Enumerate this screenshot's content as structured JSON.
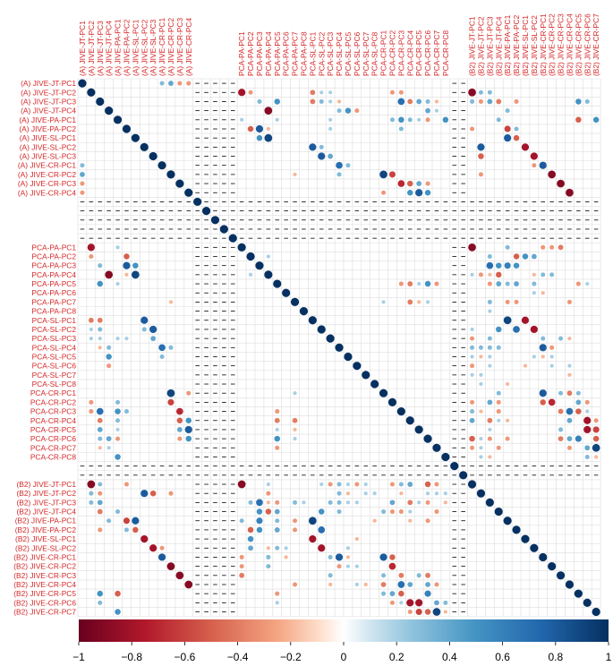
{
  "chart_data": {
    "type": "heatmap",
    "variables": [
      "(A) JIVE-JT-PC1",
      "(A) JIVE-JT-PC2",
      "(A) JIVE-JT-PC3",
      "(A) JIVE-JT-PC4",
      "(A) JIVE-PA-PC1",
      "(A) JIVE-PA-PC2",
      "(A) JIVE-SL-PC1",
      "(A) JIVE-SL-PC2",
      "(A) JIVE-SL-PC3",
      "(A) JIVE-CR-PC1",
      "(A) JIVE-CR-PC2",
      "(A) JIVE-CR-PC3",
      "(A) JIVE-CR-PC4",
      "",
      "",
      "",
      "",
      "",
      "PCA-PA-PC1",
      "PCA-PA-PC2",
      "PCA-PA-PC3",
      "PCA-PA-PC4",
      "PCA-PA-PC5",
      "PCA-PA-PC6",
      "PCA-PA-PC7",
      "PCA-PA-PC8",
      "PCA-SL-PC1",
      "PCA-SL-PC2",
      "PCA-SL-PC3",
      "PCA-SL-PC4",
      "PCA-SL-PC5",
      "PCA-SL-PC6",
      "PCA-SL-PC7",
      "PCA-SL-PC8",
      "PCA-CR-PC1",
      "PCA-CR-PC2",
      "PCA-CR-PC3",
      "PCA-CR-PC4",
      "PCA-CR-PC5",
      "PCA-CR-PC6",
      "PCA-CR-PC7",
      "PCA-CR-PC8",
      "",
      "",
      "(B2) JIVE-JT-PC1",
      "(B2) JIVE-JT-PC2",
      "(B2) JIVE-JT-PC3",
      "(B2) JIVE-JT-PC4",
      "(B2) JIVE-PA-PC1",
      "(B2) JIVE-PA-PC2",
      "(B2) JIVE-SL-PC1",
      "(B2) JIVE-SL-PC2",
      "(B2) JIVE-CR-PC1",
      "(B2) JIVE-CR-PC2",
      "(B2) JIVE-CR-PC3",
      "(B2) JIVE-CR-PC4",
      "(B2) JIVE-CR-PC5",
      "(B2) JIVE-CR-PC6",
      "(B2) JIVE-CR-PC7"
    ],
    "na_indices": [
      13,
      14,
      15,
      16,
      17,
      42,
      43
    ],
    "cells": [
      [
        0,
        9,
        0.3
      ],
      [
        0,
        10,
        0.4
      ],
      [
        0,
        11,
        -0.3
      ],
      [
        0,
        12,
        -0.3
      ],
      [
        1,
        18,
        -0.8
      ],
      [
        1,
        19,
        -0.3
      ],
      [
        1,
        26,
        -0.4
      ],
      [
        1,
        27,
        0.2
      ],
      [
        1,
        28,
        0.2
      ],
      [
        1,
        35,
        -0.3
      ],
      [
        1,
        36,
        -0.3
      ],
      [
        1,
        44,
        -0.9
      ],
      [
        1,
        45,
        0.3
      ],
      [
        1,
        46,
        0.3
      ],
      [
        2,
        20,
        0.3
      ],
      [
        2,
        22,
        0.5
      ],
      [
        2,
        26,
        -0.4
      ],
      [
        2,
        27,
        0.3
      ],
      [
        2,
        28,
        0.2
      ],
      [
        2,
        29,
        -0.2
      ],
      [
        2,
        36,
        0.7
      ],
      [
        2,
        37,
        -0.4
      ],
      [
        2,
        38,
        0.4
      ],
      [
        2,
        39,
        0.3
      ],
      [
        2,
        40,
        -0.2
      ],
      [
        2,
        44,
        0.3
      ],
      [
        2,
        45,
        -0.3
      ],
      [
        2,
        46,
        0.4
      ],
      [
        2,
        47,
        -0.4
      ],
      [
        2,
        49,
        -0.3
      ],
      [
        2,
        56,
        0.5
      ],
      [
        2,
        57,
        0.3
      ],
      [
        3,
        21,
        -0.9
      ],
      [
        3,
        29,
        0.3
      ],
      [
        3,
        30,
        0.5
      ],
      [
        3,
        31,
        -0.3
      ],
      [
        3,
        39,
        0.4
      ],
      [
        3,
        40,
        0.2
      ],
      [
        3,
        48,
        0.3
      ],
      [
        4,
        18,
        0.2
      ],
      [
        4,
        22,
        0.2
      ],
      [
        4,
        28,
        0.2
      ],
      [
        4,
        35,
        0.3
      ],
      [
        4,
        36,
        0.5
      ],
      [
        4,
        37,
        0.3
      ],
      [
        4,
        38,
        0.2
      ],
      [
        4,
        39,
        -0.3
      ],
      [
        4,
        41,
        0.5
      ],
      [
        4,
        47,
        0.3
      ],
      [
        4,
        56,
        -0.5
      ],
      [
        4,
        58,
        0.5
      ],
      [
        5,
        19,
        -0.5
      ],
      [
        5,
        20,
        0.8
      ],
      [
        5,
        21,
        -0.2
      ],
      [
        5,
        28,
        0.2
      ],
      [
        5,
        36,
        0.3
      ],
      [
        5,
        44,
        -0.3
      ],
      [
        5,
        48,
        -0.6
      ],
      [
        5,
        49,
        0.3
      ],
      [
        6,
        20,
        0.5
      ],
      [
        6,
        21,
        0.9
      ],
      [
        6,
        48,
        0.8
      ],
      [
        6,
        49,
        -0.5
      ],
      [
        7,
        26,
        0.8
      ],
      [
        7,
        27,
        0.3
      ],
      [
        7,
        45,
        0.8
      ],
      [
        7,
        50,
        -0.8
      ],
      [
        8,
        27,
        0.8
      ],
      [
        8,
        28,
        0.4
      ],
      [
        8,
        45,
        -0.5
      ],
      [
        8,
        51,
        -0.8
      ],
      [
        9,
        29,
        0.7
      ],
      [
        9,
        30,
        0.3
      ],
      [
        9,
        51,
        -0.3
      ],
      [
        9,
        52,
        0.8
      ],
      [
        10,
        24,
        -0.2
      ],
      [
        10,
        29,
        0.3
      ],
      [
        10,
        34,
        0.9
      ],
      [
        10,
        35,
        -0.6
      ],
      [
        10,
        45,
        -0.3
      ],
      [
        10,
        53,
        -0.9
      ],
      [
        11,
        36,
        -0.7
      ],
      [
        11,
        37,
        -0.5
      ],
      [
        11,
        38,
        0.4
      ],
      [
        11,
        39,
        -0.3
      ],
      [
        11,
        54,
        -0.9
      ],
      [
        12,
        34,
        -0.3
      ],
      [
        12,
        37,
        0.5
      ],
      [
        12,
        38,
        0.8
      ],
      [
        12,
        39,
        0.5
      ],
      [
        12,
        55,
        -0.9
      ],
      [
        18,
        44,
        -0.9
      ],
      [
        18,
        48,
        0.3
      ],
      [
        18,
        52,
        -0.3
      ],
      [
        18,
        53,
        -0.3
      ],
      [
        18,
        54,
        -0.4
      ],
      [
        19,
        21,
        0.2
      ],
      [
        19,
        46,
        0.3
      ],
      [
        19,
        49,
        -0.5
      ],
      [
        19,
        50,
        0.5
      ],
      [
        19,
        51,
        0.4
      ],
      [
        20,
        46,
        0.7
      ],
      [
        20,
        47,
        0.5
      ],
      [
        20,
        48,
        0.6
      ],
      [
        20,
        49,
        0.5
      ],
      [
        21,
        44,
        0.2
      ],
      [
        21,
        45,
        -0.3
      ],
      [
        21,
        46,
        -0.2
      ],
      [
        21,
        47,
        -0.5
      ],
      [
        21,
        51,
        -0.2
      ],
      [
        21,
        52,
        0.3
      ],
      [
        21,
        53,
        0.3
      ],
      [
        22,
        36,
        -0.3
      ],
      [
        22,
        37,
        -0.4
      ],
      [
        22,
        38,
        0.2
      ],
      [
        22,
        39,
        0.5
      ],
      [
        22,
        40,
        -0.3
      ],
      [
        22,
        46,
        -0.3
      ],
      [
        22,
        47,
        0.4
      ],
      [
        22,
        48,
        0.3
      ],
      [
        22,
        49,
        0.4
      ],
      [
        22,
        51,
        0.3
      ],
      [
        22,
        56,
        -0.3
      ],
      [
        22,
        57,
        0.2
      ],
      [
        23,
        51,
        0.2
      ],
      [
        23,
        52,
        -0.2
      ],
      [
        24,
        34,
        0.2
      ],
      [
        24,
        37,
        -0.4
      ],
      [
        24,
        38,
        -0.2
      ],
      [
        24,
        39,
        0.2
      ],
      [
        24,
        46,
        0.3
      ],
      [
        24,
        48,
        -0.3
      ],
      [
        24,
        49,
        -0.3
      ],
      [
        24,
        55,
        -0.3
      ],
      [
        25,
        46,
        0.2
      ],
      [
        26,
        48,
        0.9
      ],
      [
        26,
        50,
        -0.8
      ],
      [
        27,
        44,
        0.2
      ],
      [
        27,
        47,
        0.5
      ],
      [
        27,
        49,
        0.7
      ],
      [
        27,
        51,
        -0.8
      ],
      [
        28,
        44,
        -0.3
      ],
      [
        28,
        46,
        0.3
      ],
      [
        28,
        52,
        0.3
      ],
      [
        28,
        54,
        0.3
      ],
      [
        28,
        55,
        -0.2
      ],
      [
        29,
        44,
        0.3
      ],
      [
        29,
        45,
        0.3
      ],
      [
        29,
        46,
        0.3
      ],
      [
        29,
        47,
        0.3
      ],
      [
        29,
        52,
        0.8
      ],
      [
        29,
        53,
        -0.3
      ],
      [
        30,
        44,
        0.2
      ],
      [
        30,
        45,
        -0.2
      ],
      [
        30,
        46,
        0.2
      ],
      [
        30,
        51,
        0.2
      ],
      [
        30,
        52,
        -0.2
      ],
      [
        30,
        53,
        0.2
      ],
      [
        31,
        44,
        -0.3
      ],
      [
        31,
        46,
        0.2
      ],
      [
        31,
        50,
        -0.2
      ],
      [
        31,
        53,
        0.2
      ],
      [
        31,
        55,
        0.2
      ],
      [
        32,
        44,
        0.2
      ],
      [
        32,
        45,
        0.2
      ],
      [
        32,
        55,
        -0.2
      ],
      [
        33,
        45,
        0.2
      ],
      [
        33,
        48,
        -0.2
      ],
      [
        34,
        47,
        0.3
      ],
      [
        34,
        52,
        0.8
      ],
      [
        34,
        54,
        0.3
      ],
      [
        34,
        55,
        -0.4
      ],
      [
        34,
        56,
        0.3
      ],
      [
        35,
        44,
        -0.3
      ],
      [
        35,
        46,
        0.4
      ],
      [
        35,
        47,
        -0.3
      ],
      [
        35,
        52,
        -0.5
      ],
      [
        35,
        53,
        -0.7
      ],
      [
        35,
        56,
        0.4
      ],
      [
        35,
        57,
        -0.3
      ],
      [
        36,
        44,
        0.3
      ],
      [
        36,
        45,
        -0.2
      ],
      [
        36,
        47,
        -0.3
      ],
      [
        36,
        54,
        -0.4
      ],
      [
        36,
        55,
        0.7
      ],
      [
        36,
        56,
        -0.5
      ],
      [
        36,
        57,
        0.2
      ],
      [
        37,
        44,
        0.4
      ],
      [
        37,
        46,
        -0.4
      ],
      [
        37,
        47,
        0.2
      ],
      [
        37,
        48,
        -0.2
      ],
      [
        37,
        55,
        0.4
      ],
      [
        37,
        57,
        -0.8
      ],
      [
        37,
        58,
        -0.3
      ],
      [
        38,
        46,
        0.2
      ],
      [
        38,
        54,
        0.3
      ],
      [
        38,
        57,
        -0.8
      ],
      [
        38,
        58,
        -0.6
      ],
      [
        39,
        44,
        -0.5
      ],
      [
        39,
        45,
        0.2
      ],
      [
        39,
        46,
        -0.3
      ],
      [
        39,
        48,
        -0.3
      ],
      [
        39,
        54,
        -0.4
      ],
      [
        39,
        55,
        0.4
      ],
      [
        39,
        56,
        0.6
      ],
      [
        39,
        58,
        -0.5
      ],
      [
        40,
        44,
        -0.3
      ],
      [
        40,
        45,
        0.2
      ],
      [
        40,
        47,
        -0.3
      ],
      [
        40,
        55,
        -0.3
      ],
      [
        40,
        57,
        0.4
      ],
      [
        40,
        58,
        0.9
      ],
      [
        41,
        45,
        0.2
      ],
      [
        41,
        46,
        -0.2
      ],
      [
        41,
        57,
        0.3
      ],
      [
        41,
        58,
        -0.2
      ]
    ],
    "legend": {
      "ticks": [
        -1,
        -0.8,
        -0.6,
        -0.4,
        -0.2,
        0,
        0.2,
        0.4,
        0.6,
        0.8,
        1
      ],
      "tick_labels": [
        "−1",
        "−0.8",
        "−0.6",
        "−0.4",
        "−0.2",
        "0",
        "0.2",
        "0.4",
        "0.6",
        "0.8",
        "1"
      ],
      "low_color": "#67001f",
      "mid_color": "#ffffff",
      "high_color": "#053061"
    },
    "label_color": "#d62728"
  }
}
